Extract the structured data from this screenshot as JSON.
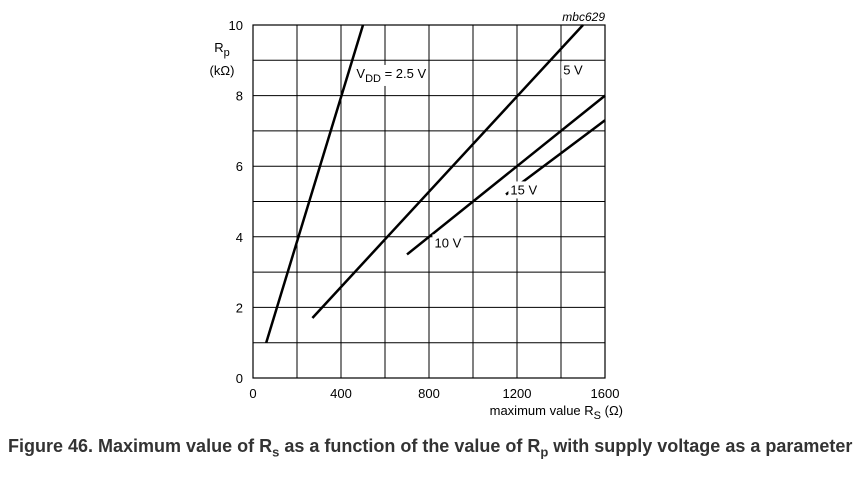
{
  "chart_data": {
    "type": "line",
    "figure_code": "mbc629",
    "xlabel": "maximum value R",
    "xlabel_sub": "S",
    "xlabel_unit": " (Ω)",
    "ylabel": "R",
    "ylabel_sub": "p",
    "ylabel_unit": "(kΩ)",
    "xlim": [
      0,
      1600
    ],
    "ylim": [
      0,
      10
    ],
    "x_ticks": [
      0,
      400,
      800,
      1200,
      1600
    ],
    "y_ticks": [
      0,
      2,
      4,
      6,
      8,
      10
    ],
    "grid": true,
    "series": [
      {
        "label_prefix": "V",
        "label_sub": "DD",
        "label_rest": " = 2.5 V",
        "label_at": [
          470,
          8.5
        ],
        "x": [
          60,
          500
        ],
        "y": [
          1.0,
          10.0
        ]
      },
      {
        "label": "5 V",
        "label_at": [
          1410,
          8.6
        ],
        "x": [
          270,
          1500
        ],
        "y": [
          1.7,
          10.0
        ]
      },
      {
        "label": "10 V",
        "label_at": [
          825,
          3.7
        ],
        "x": [
          700,
          1600
        ],
        "y": [
          3.5,
          8.0
        ]
      },
      {
        "label": "15 V",
        "label_at": [
          1170,
          5.2
        ],
        "x": [
          1150,
          1600
        ],
        "y": [
          5.2,
          7.3
        ]
      }
    ]
  },
  "caption": {
    "prefix": "Figure 46.  Maximum value of R",
    "sub1": "s",
    "middle": " as a function of the value of R",
    "sub2": "p",
    "suffix": " with supply voltage as a parameter"
  }
}
